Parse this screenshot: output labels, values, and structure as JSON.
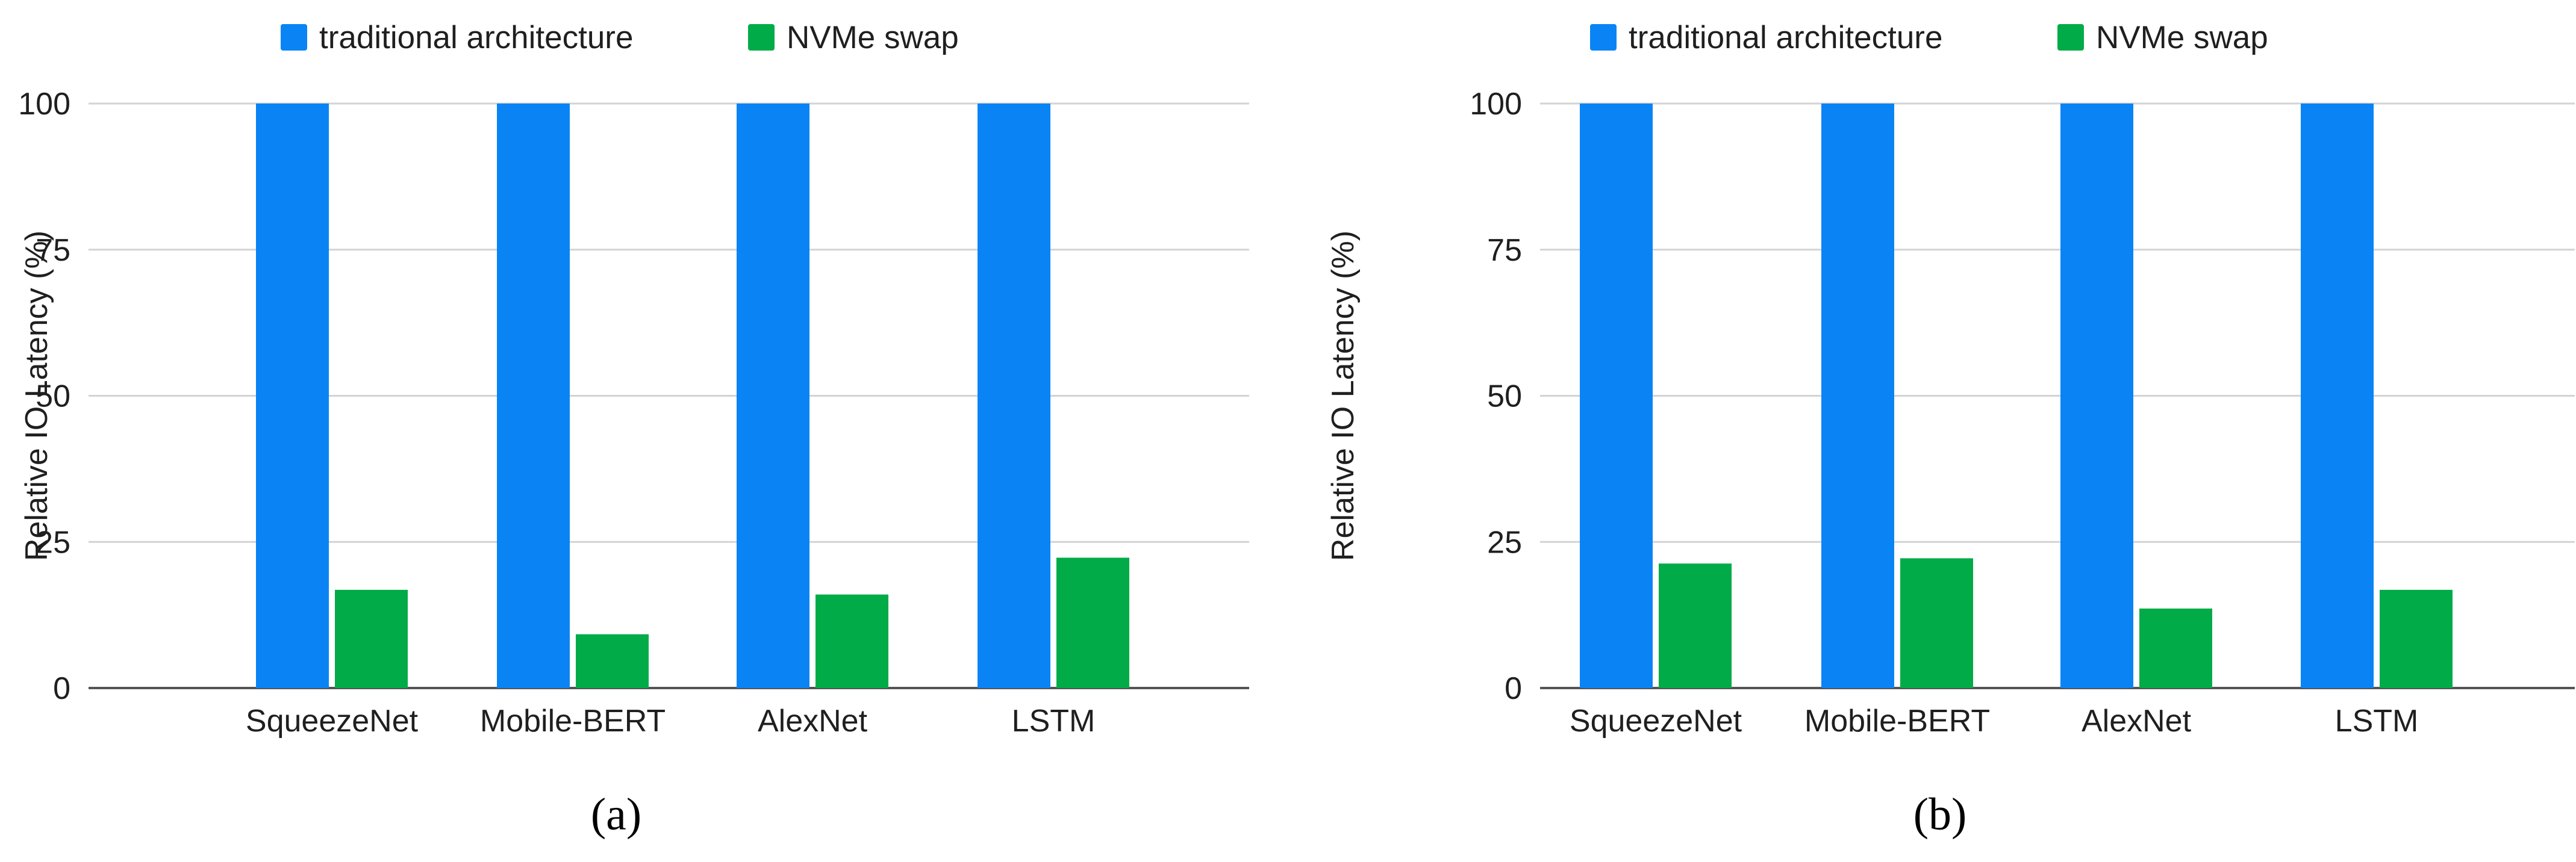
{
  "colors": {
    "traditional": "#0A84F5",
    "nvme": "#00AB48",
    "grid": "#D3D3D3",
    "axis": "#555555",
    "text": "#1F1F1F",
    "caption": "#000000"
  },
  "chart_data": [
    {
      "type": "bar",
      "panel": "a",
      "caption": "(a)",
      "title": "",
      "xlabel": "",
      "ylabel": "Relative IO Latency (%)",
      "ylim": [
        0,
        100
      ],
      "yticks": [
        "0",
        "25",
        "50",
        "75",
        "100"
      ],
      "grid": true,
      "legend_position": "top",
      "categories": [
        "SqueezeNet",
        "Mobile-BERT",
        "AlexNet",
        "LSTM"
      ],
      "series": [
        {
          "name": "traditional architecture",
          "color_key": "traditional",
          "values": [
            100,
            100,
            100,
            100
          ]
        },
        {
          "name": "NVMe swap",
          "color_key": "nvme",
          "values": [
            16.8,
            9.2,
            16.0,
            22.3
          ]
        }
      ]
    },
    {
      "type": "bar",
      "panel": "b",
      "caption": "(b)",
      "title": "",
      "xlabel": "",
      "ylabel": "Relative IO Latency (%)",
      "ylim": [
        0,
        100
      ],
      "yticks": [
        "0",
        "25",
        "50",
        "75",
        "100"
      ],
      "grid": true,
      "legend_position": "top",
      "categories": [
        "SqueezeNet",
        "Mobile-BERT",
        "AlexNet",
        "LSTM"
      ],
      "series": [
        {
          "name": "traditional architecture",
          "color_key": "traditional",
          "values": [
            100,
            100,
            100,
            100
          ]
        },
        {
          "name": "NVMe swap",
          "color_key": "nvme",
          "values": [
            21.3,
            22.2,
            13.6,
            16.8
          ]
        }
      ]
    }
  ]
}
